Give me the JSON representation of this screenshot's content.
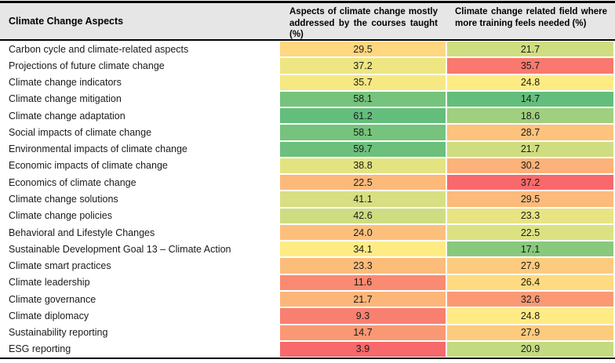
{
  "header": {
    "col1": "Climate Change Aspects",
    "col2": "Aspects of climate change mostly addressed by the courses taught (%)",
    "col3": "Climate change related field where more training feels needed (%)"
  },
  "styles": {
    "header_bg": "#E7E6E6",
    "border_color": "#000000",
    "color_scale": {
      "low": "#F8696B",
      "mid": "#FFEB84",
      "high": "#63BE7B"
    }
  },
  "chart_data": {
    "type": "heatmap",
    "title": "",
    "columns": [
      "Climate Change Aspects",
      "Aspects of climate change mostly addressed by the courses taught (%)",
      "Climate change related field where more training feels needed (%)"
    ],
    "categories": [
      "Carbon cycle and climate-related aspects",
      "Projections of future climate change",
      "Climate change indicators",
      "Climate change mitigation",
      "Climate change adaptation",
      "Social impacts of climate change",
      "Environmental impacts of climate change",
      "Economic impacts of climate change",
      "Economics of climate change",
      "Climate change solutions",
      "Climate change policies",
      "Behavioral and Lifestyle Changes",
      "Sustainable Development Goal 13 – Climate Action",
      "Climate smart practices",
      "Climate leadership",
      "Climate governance",
      "Climate diplomacy",
      "Sustainability reporting",
      "ESG reporting"
    ],
    "series": [
      {
        "name": "Aspects of climate change mostly addressed by the courses taught (%)",
        "values": [
          29.5,
          37.2,
          35.7,
          58.1,
          61.2,
          58.1,
          59.7,
          38.8,
          22.5,
          41.1,
          42.6,
          24.0,
          34.1,
          23.3,
          11.6,
          21.7,
          9.3,
          14.7,
          3.9
        ],
        "cell_colors": [
          "#FED780",
          "#EDE683",
          "#F6E883",
          "#75C37C",
          "#63BE7B",
          "#75C37C",
          "#6CC07C",
          "#E4E382",
          "#FCB97A",
          "#D7DF82",
          "#CEDD81",
          "#FDC07C",
          "#FFEB84",
          "#FCBD7B",
          "#FA8A71",
          "#FCB67A",
          "#F98070",
          "#FA9874",
          "#F8696B"
        ]
      },
      {
        "name": "Climate change related field where more training feels needed (%)",
        "values": [
          21.7,
          35.7,
          24.8,
          14.7,
          18.6,
          28.7,
          21.7,
          30.2,
          37.2,
          29.5,
          23.3,
          22.5,
          17.1,
          27.9,
          26.4,
          32.6,
          24.8,
          27.9,
          20.9
        ],
        "cell_colors": [
          "#CFDD81",
          "#F9796E",
          "#FFEB84",
          "#63BE7B",
          "#9FCF7F",
          "#FDC27C",
          "#CFDD81",
          "#FCB279",
          "#F8696B",
          "#FCBA7B",
          "#E8E483",
          "#DCE182",
          "#88C97D",
          "#FDCB7E",
          "#FEDA81",
          "#FB9974",
          "#FFEB84",
          "#FDCB7E",
          "#C3DA81"
        ]
      }
    ],
    "value_format": "one_decimal",
    "legend_position": "none",
    "grid": false
  }
}
